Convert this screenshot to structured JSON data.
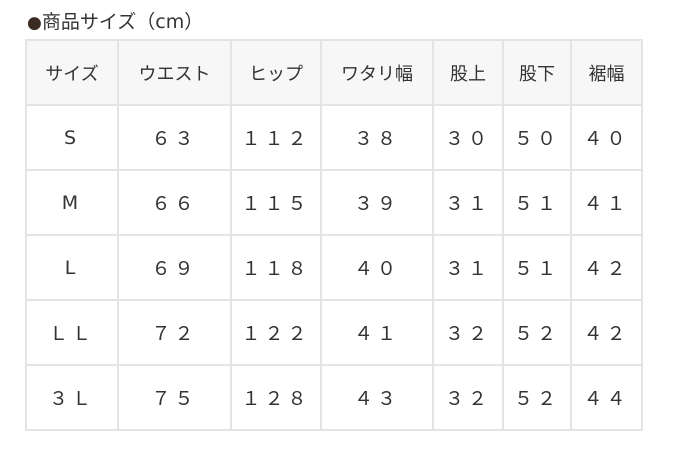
{
  "title": {
    "bullet": "●",
    "text": "商品サイズ（cm）"
  },
  "table": {
    "headers": [
      "サイズ",
      "ウエスト",
      "ヒップ",
      "ワタリ幅",
      "股上",
      "股下",
      "裾幅"
    ],
    "rows": [
      [
        "S",
        "６３",
        "１１２",
        "３８",
        "３０",
        "５０",
        "４０"
      ],
      [
        "M",
        "６６",
        "１１５",
        "３９",
        "３１",
        "５１",
        "４１"
      ],
      [
        "L",
        "６９",
        "１１８",
        "４０",
        "３１",
        "５１",
        "４２"
      ],
      [
        "ＬＬ",
        "７２",
        "１２２",
        "４１",
        "３２",
        "５２",
        "４２"
      ],
      [
        "３Ｌ",
        "７５",
        "１２８",
        "４３",
        "３２",
        "５２",
        "４４"
      ]
    ]
  }
}
